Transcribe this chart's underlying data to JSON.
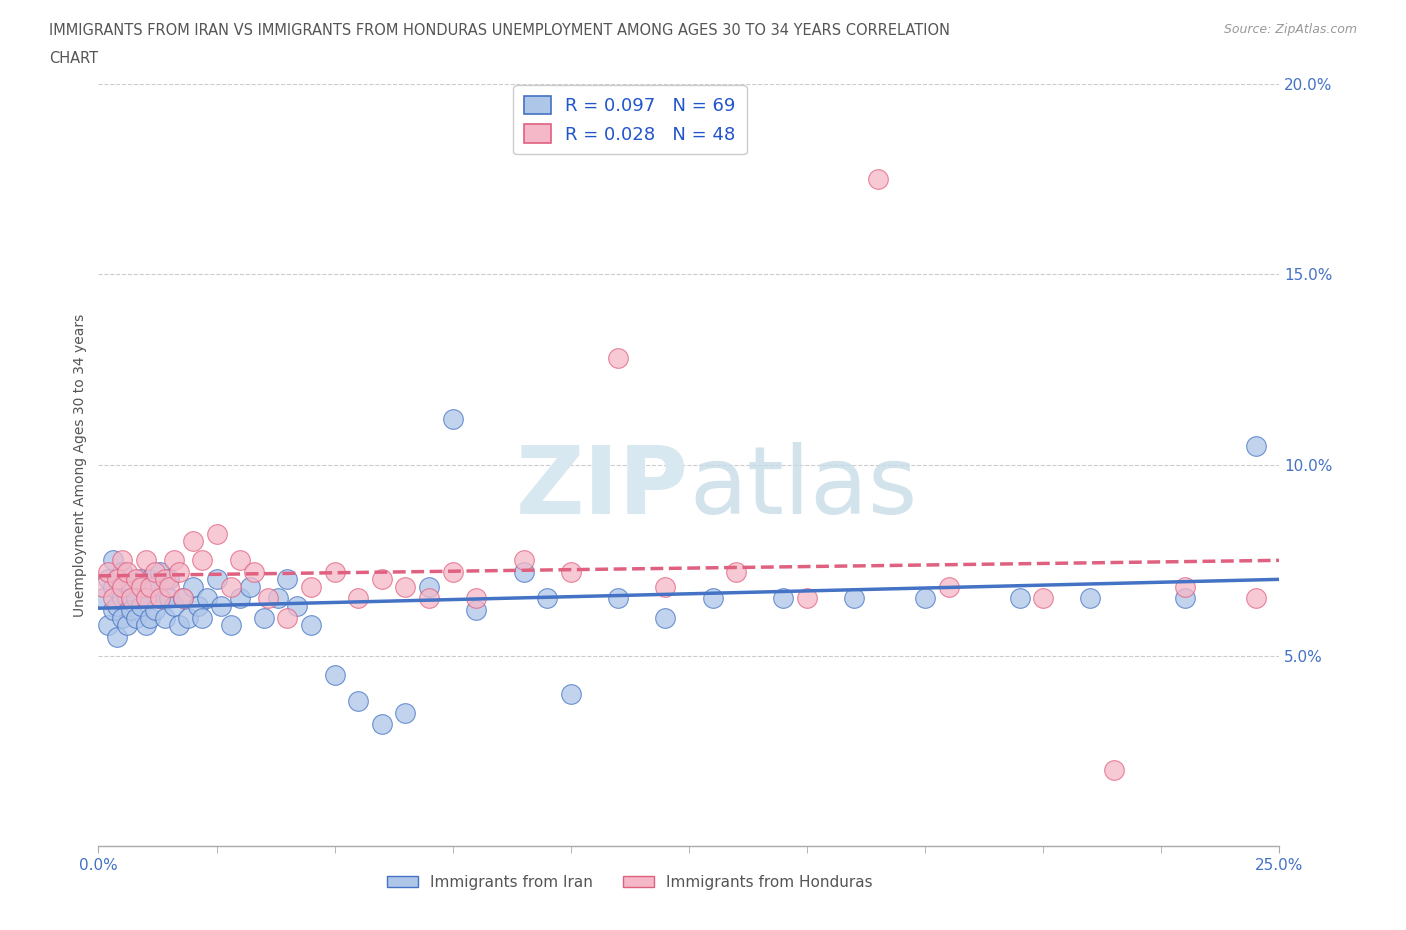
{
  "title_line1": "IMMIGRANTS FROM IRAN VS IMMIGRANTS FROM HONDURAS UNEMPLOYMENT AMONG AGES 30 TO 34 YEARS CORRELATION",
  "title_line2": "CHART",
  "source": "Source: ZipAtlas.com",
  "ylabel": "Unemployment Among Ages 30 to 34 years",
  "xlim": [
    0.0,
    0.25
  ],
  "ylim": [
    0.0,
    0.2
  ],
  "xtick_positions": [
    0.0,
    0.25
  ],
  "xtick_labels": [
    "0.0%",
    "25.0%"
  ],
  "ytick_positions": [
    0.05,
    0.1,
    0.15,
    0.2
  ],
  "ytick_labels": [
    "5.0%",
    "10.0%",
    "15.0%",
    "20.0%"
  ],
  "iran_color": "#aec6e8",
  "honduras_color": "#f4b8c8",
  "iran_line_color": "#4472c4",
  "honduras_line_color": "#e06080",
  "iran_R": 0.097,
  "iran_N": 69,
  "honduras_R": 0.028,
  "honduras_N": 48,
  "background_color": "#ffffff",
  "grid_color": "#cccccc",
  "title_color": "#555555",
  "axis_label_color": "#555555",
  "tick_color": "#4472c4",
  "legend_text_color": "#2255cc",
  "watermark_color": "#d8e8f0",
  "iran_scatter_x": [
    0.001,
    0.002,
    0.002,
    0.003,
    0.003,
    0.003,
    0.004,
    0.004,
    0.004,
    0.005,
    0.005,
    0.005,
    0.006,
    0.006,
    0.007,
    0.007,
    0.008,
    0.008,
    0.009,
    0.009,
    0.01,
    0.01,
    0.011,
    0.011,
    0.012,
    0.012,
    0.013,
    0.013,
    0.014,
    0.015,
    0.015,
    0.016,
    0.017,
    0.018,
    0.019,
    0.02,
    0.021,
    0.022,
    0.023,
    0.025,
    0.026,
    0.028,
    0.03,
    0.032,
    0.035,
    0.038,
    0.04,
    0.042,
    0.045,
    0.05,
    0.055,
    0.06,
    0.065,
    0.07,
    0.075,
    0.08,
    0.09,
    0.095,
    0.1,
    0.11,
    0.12,
    0.13,
    0.145,
    0.16,
    0.175,
    0.195,
    0.21,
    0.23,
    0.245
  ],
  "iran_scatter_y": [
    0.065,
    0.058,
    0.07,
    0.062,
    0.068,
    0.075,
    0.055,
    0.063,
    0.07,
    0.06,
    0.065,
    0.072,
    0.058,
    0.065,
    0.062,
    0.068,
    0.06,
    0.065,
    0.063,
    0.07,
    0.058,
    0.065,
    0.07,
    0.06,
    0.068,
    0.062,
    0.065,
    0.072,
    0.06,
    0.065,
    0.07,
    0.063,
    0.058,
    0.065,
    0.06,
    0.068,
    0.063,
    0.06,
    0.065,
    0.07,
    0.063,
    0.058,
    0.065,
    0.068,
    0.06,
    0.065,
    0.07,
    0.063,
    0.058,
    0.045,
    0.038,
    0.032,
    0.035,
    0.068,
    0.112,
    0.062,
    0.072,
    0.065,
    0.04,
    0.065,
    0.06,
    0.065,
    0.065,
    0.065,
    0.065,
    0.065,
    0.065,
    0.065,
    0.105
  ],
  "honduras_scatter_x": [
    0.001,
    0.002,
    0.003,
    0.004,
    0.005,
    0.005,
    0.006,
    0.007,
    0.008,
    0.009,
    0.01,
    0.01,
    0.011,
    0.012,
    0.013,
    0.014,
    0.015,
    0.016,
    0.017,
    0.018,
    0.02,
    0.022,
    0.025,
    0.028,
    0.03,
    0.033,
    0.036,
    0.04,
    0.045,
    0.05,
    0.055,
    0.06,
    0.065,
    0.07,
    0.075,
    0.08,
    0.09,
    0.1,
    0.11,
    0.12,
    0.135,
    0.15,
    0.165,
    0.18,
    0.2,
    0.215,
    0.23,
    0.245
  ],
  "honduras_scatter_y": [
    0.068,
    0.072,
    0.065,
    0.07,
    0.075,
    0.068,
    0.072,
    0.065,
    0.07,
    0.068,
    0.075,
    0.065,
    0.068,
    0.072,
    0.065,
    0.07,
    0.068,
    0.075,
    0.072,
    0.065,
    0.08,
    0.075,
    0.082,
    0.068,
    0.075,
    0.072,
    0.065,
    0.06,
    0.068,
    0.072,
    0.065,
    0.07,
    0.068,
    0.065,
    0.072,
    0.065,
    0.075,
    0.072,
    0.128,
    0.068,
    0.072,
    0.065,
    0.175,
    0.068,
    0.065,
    0.02,
    0.068,
    0.065
  ]
}
